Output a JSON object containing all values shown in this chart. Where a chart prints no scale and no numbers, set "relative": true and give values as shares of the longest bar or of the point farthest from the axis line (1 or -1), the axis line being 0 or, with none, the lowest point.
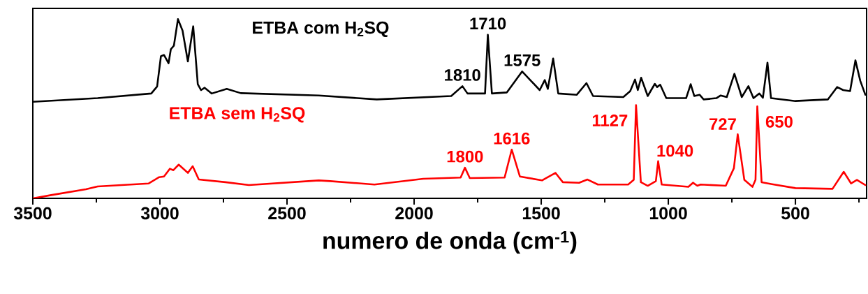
{
  "chart_data": {
    "type": "line",
    "relative": true,
    "xlabel": "numero de onda (cm$^{-1}$)",
    "xlim": [
      3500,
      220
    ],
    "xticks": [
      3500,
      {
        "value": 3250,
        "label": null
      },
      3000,
      {
        "value": 2750,
        "label": null
      },
      2500,
      {
        "value": 2250,
        "label": null
      },
      2000,
      {
        "value": 1750,
        "label": null
      },
      1500,
      {
        "value": 1250,
        "label": null
      },
      1000,
      {
        "value": 750,
        "label": null
      },
      500,
      {
        "value": 250,
        "label": null
      }
    ],
    "line_style": "solid",
    "series": [
      {
        "name": "ETBA com H$_{2}$SQ",
        "color": "#000000",
        "x": [
          3500,
          3245,
          3034,
          3011,
          2996,
          2984,
          2966,
          2957,
          2945,
          2929,
          2911,
          2890,
          2869,
          2851,
          2838,
          2824,
          2796,
          2737,
          2682,
          2375,
          2147,
          1854,
          1810,
          1790,
          1721,
          1710,
          1694,
          1635,
          1575,
          1506,
          1486,
          1474,
          1453,
          1433,
          1360,
          1322,
          1296,
          1177,
          1150,
          1131,
          1120,
          1107,
          1081,
          1053,
          1044,
          1032,
          1008,
          930,
          912,
          898,
          877,
          861,
          811,
          794,
          770,
          740,
          711,
          685,
          665,
          642,
          628,
          610,
          596,
          500,
          372,
          336,
          312,
          285,
          264,
          245,
          225
        ],
        "values": [
          0.539,
          0.559,
          0.585,
          0.624,
          0.793,
          0.8,
          0.754,
          0.832,
          0.852,
          1.0,
          0.936,
          0.764,
          0.96,
          0.637,
          0.604,
          0.617,
          0.585,
          0.611,
          0.587,
          0.574,
          0.552,
          0.571,
          0.626,
          0.585,
          0.585,
          0.913,
          0.585,
          0.591,
          0.708,
          0.604,
          0.66,
          0.611,
          0.78,
          0.585,
          0.578,
          0.643,
          0.571,
          0.565,
          0.598,
          0.663,
          0.604,
          0.673,
          0.571,
          0.639,
          0.621,
          0.634,
          0.559,
          0.559,
          0.637,
          0.571,
          0.578,
          0.552,
          0.559,
          0.574,
          0.565,
          0.695,
          0.565,
          0.626,
          0.559,
          0.585,
          0.561,
          0.757,
          0.559,
          0.543,
          0.552,
          0.621,
          0.604,
          0.598,
          0.77,
          0.656,
          0.578
        ]
      },
      {
        "name": "ETBA sem H$_{2}$SQ",
        "color": "#ff0000",
        "x": [
          3500,
          3428,
          3291,
          3245,
          3044,
          3003,
          2984,
          2961,
          2947,
          2926,
          2890,
          2871,
          2847,
          2742,
          2650,
          2375,
          2330,
          2156,
          1964,
          1817,
          1800,
          1781,
          1644,
          1616,
          1584,
          1497,
          1444,
          1415,
          1351,
          1318,
          1277,
          1158,
          1136,
          1127,
          1108,
          1081,
          1049,
          1040,
          1026,
          921,
          903,
          886,
          873,
          774,
          742,
          727,
          701,
          669,
          657,
          650,
          633,
          592,
          500,
          354,
          310,
          281,
          258,
          225
        ],
        "values": [
          0.0,
          0.018,
          0.051,
          0.066,
          0.083,
          0.118,
          0.122,
          0.165,
          0.157,
          0.188,
          0.142,
          0.179,
          0.105,
          0.09,
          0.074,
          0.1,
          0.096,
          0.077,
          0.109,
          0.116,
          0.171,
          0.113,
          0.116,
          0.272,
          0.122,
          0.1,
          0.142,
          0.09,
          0.087,
          0.105,
          0.077,
          0.077,
          0.103,
          0.52,
          0.09,
          0.07,
          0.096,
          0.207,
          0.077,
          0.064,
          0.087,
          0.07,
          0.077,
          0.07,
          0.168,
          0.357,
          0.103,
          0.064,
          0.103,
          0.513,
          0.09,
          0.079,
          0.057,
          0.053,
          0.148,
          0.083,
          0.103,
          0.074
        ]
      }
    ],
    "annotations": [
      {
        "text": "1810",
        "x": 1810,
        "y": 0.626
      },
      {
        "text": "1710",
        "x": 1710,
        "y": 0.913
      },
      {
        "text": "1575",
        "x": 1575,
        "y": 0.708
      },
      {
        "text": "1800",
        "x": 1800,
        "y": 0.171
      },
      {
        "text": "1616",
        "x": 1616,
        "y": 0.272
      },
      {
        "text": "1127",
        "x": 1127,
        "y": 0.52
      },
      {
        "text": "1040",
        "x": 1040,
        "y": 0.207
      },
      {
        "text": "727",
        "x": 727,
        "y": 0.357
      },
      {
        "text": "650",
        "x": 650,
        "y": 0.513
      }
    ]
  }
}
